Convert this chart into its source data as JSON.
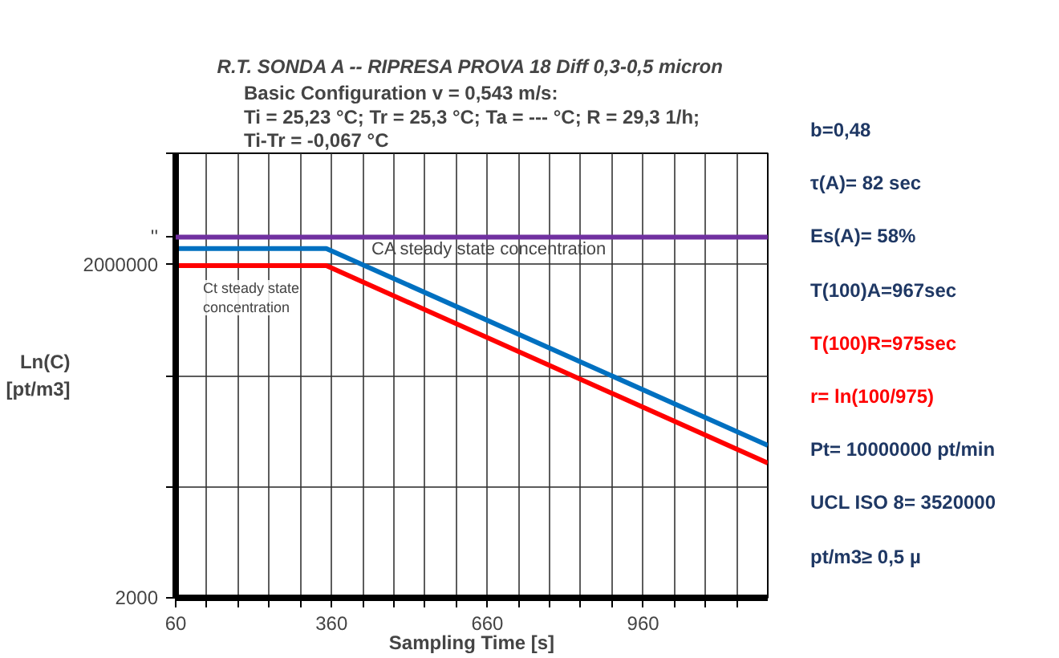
{
  "chart_data": {
    "type": "line",
    "title": "R.T. SONDA A -- RIPRESA PROVA 18 Diff 0,3-0,5 micron",
    "subtitle": "Basic Configuration v = 0,543 m/s:\nTi = 25,23 °C; Tr = 25,3 °C; Ta = --- °C; R = 29,3 1/h;\nTi-Tr = -0,067 °C",
    "xlabel": "Sampling Time [s]",
    "ylabel": "Ln(C)\n[pt/m3]",
    "series": [
      {
        "color": "#0070c0",
        "x": [
          60,
          350,
          1200
        ],
        "values": [
          2780000,
          2780000,
          47000
        ]
      },
      {
        "color": "#ff0000",
        "x": [
          60,
          350,
          1200
        ],
        "values": [
          1950000,
          1950000,
          32700
        ]
      }
    ],
    "ref_lines": [
      {
        "axis": "y",
        "value": 3520000,
        "color": "#7030a0"
      }
    ],
    "log": "y",
    "xlim": [
      60,
      1200
    ],
    "ylim": [
      2000,
      20000000
    ],
    "xticks": [
      60,
      {
        "value": 120,
        "label": null
      },
      {
        "value": 180,
        "label": null
      },
      {
        "value": 240,
        "label": null
      },
      {
        "value": 300,
        "label": null
      },
      360,
      {
        "value": 420,
        "label": null
      },
      {
        "value": 480,
        "label": null
      },
      {
        "value": 540,
        "label": null
      },
      {
        "value": 600,
        "label": null
      },
      660,
      {
        "value": 720,
        "label": null
      },
      {
        "value": 780,
        "label": null
      },
      {
        "value": 840,
        "label": null
      },
      {
        "value": 900,
        "label": null
      },
      960,
      {
        "value": 1020,
        "label": null
      },
      {
        "value": 1080,
        "label": null
      },
      {
        "value": 1140,
        "label": null
      }
    ],
    "yticks": [
      2000,
      {
        "value": 20000,
        "label": null
      },
      {
        "value": 200000,
        "label": null
      },
      2000000,
      {
        "value": 3520000,
        "label": "''"
      },
      {
        "value": 20000000,
        "label": null
      }
    ],
    "grid": true,
    "line_style": "solid",
    "marker": "none",
    "annotations": [
      "CA  steady state concentration",
      "Ct steady state\nconcentration",
      "b=0,48",
      "τ(A)= 82 sec",
      "Es(A)= 58%",
      "T(100)A=967sec",
      "T(100)R=975sec",
      "r= ln(100/975)",
      "Pt= 10000000 pt/min",
      "UCL ISO 8= 3520000",
      "pt/m3≥ 0,5 µ"
    ]
  }
}
